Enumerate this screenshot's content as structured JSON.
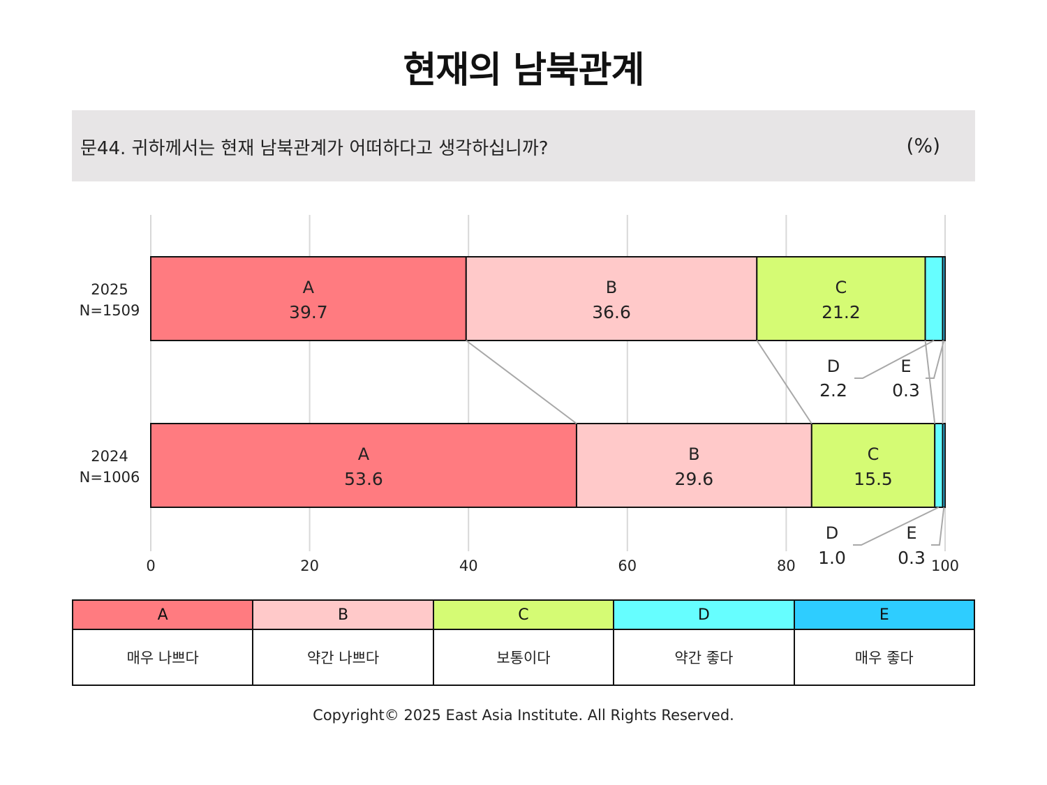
{
  "title": "현재의 남북관계",
  "question": {
    "text": "문44. 귀하께서는 현재 남북관계가 어떠하다고 생각하십니까?",
    "unit": "(%)"
  },
  "colors": {
    "A": "#ff7b80",
    "B": "#ffc9c9",
    "C": "#d5fb74",
    "D": "#66feff",
    "E": "#2ecdff"
  },
  "chart_data": {
    "type": "bar",
    "orientation": "horizontal",
    "stacked": true,
    "xlim": [
      0,
      100
    ],
    "x_ticks": [
      "0",
      "20",
      "40",
      "60",
      "80",
      "100"
    ],
    "grid": true,
    "categories": [
      {
        "year": "2025",
        "n": "N=1509"
      },
      {
        "year": "2024",
        "n": "N=1006"
      }
    ],
    "series": [
      {
        "name": "A",
        "values": [
          39.7,
          53.6
        ]
      },
      {
        "name": "B",
        "values": [
          36.6,
          29.6
        ]
      },
      {
        "name": "C",
        "values": [
          21.2,
          15.5
        ]
      },
      {
        "name": "D",
        "values": [
          2.2,
          1.0
        ]
      },
      {
        "name": "E",
        "values": [
          0.3,
          0.3
        ]
      }
    ],
    "value_labels": [
      [
        "39.7",
        "36.6",
        "21.2",
        "2.2",
        "0.3"
      ],
      [
        "53.6",
        "29.6",
        "15.5",
        "1.0",
        "0.3"
      ]
    ]
  },
  "legend": [
    {
      "code": "A",
      "label": "매우 나쁘다"
    },
    {
      "code": "B",
      "label": "약간 나쁘다"
    },
    {
      "code": "C",
      "label": "보통이다"
    },
    {
      "code": "D",
      "label": "약간 좋다"
    },
    {
      "code": "E",
      "label": "매우 좋다"
    }
  ],
  "copyright": "Copyright© 2025 East Asia Institute. All Rights Reserved."
}
